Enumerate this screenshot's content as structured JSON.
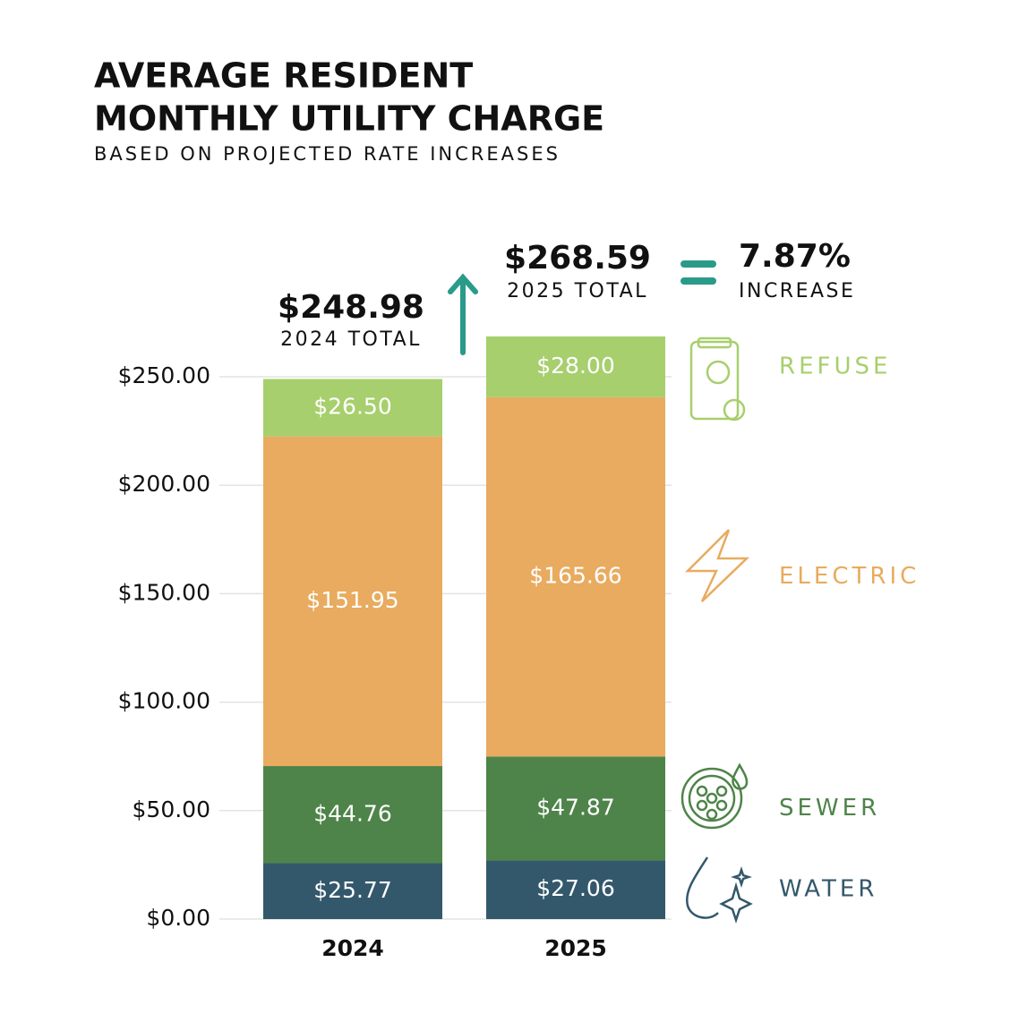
{
  "chart_data": {
    "type": "stacked-bar",
    "title": [
      "AVERAGE RESIDENT",
      "MONTHLY UTILITY CHARGE"
    ],
    "subtitle": "BASED ON PROJECTED RATE INCREASES",
    "categories": [
      "2024",
      "2025"
    ],
    "series": [
      {
        "name": "WATER",
        "color": "#33586b",
        "values": [
          25.77,
          27.06
        ],
        "value_labels": [
          "$25.77",
          "$27.06"
        ]
      },
      {
        "name": "SEWER",
        "color": "#4e8449",
        "values": [
          44.76,
          47.87
        ],
        "value_labels": [
          "$44.76",
          "$47.87"
        ]
      },
      {
        "name": "ELECTRIC",
        "color": "#e8ab5f",
        "values": [
          151.95,
          165.66
        ],
        "value_labels": [
          "$151.95",
          "$165.66"
        ]
      },
      {
        "name": "REFUSE",
        "color": "#a7cf6d",
        "values": [
          26.5,
          28.0
        ],
        "value_labels": [
          "$26.50",
          "$28.00"
        ]
      }
    ],
    "totals": [
      {
        "label": "$248.98",
        "caption": "2024 TOTAL"
      },
      {
        "label": "$268.59",
        "caption": "2025 TOTAL"
      }
    ],
    "increase": {
      "label": "7.87%",
      "caption": "INCREASE"
    },
    "ylim": [
      0,
      250
    ],
    "yticks": [
      {
        "value": 0,
        "label": "$0.00"
      },
      {
        "value": 50,
        "label": "$50.00"
      },
      {
        "value": 100,
        "label": "$100.00"
      },
      {
        "value": 150,
        "label": "$150.00"
      },
      {
        "value": 200,
        "label": "$200.00"
      },
      {
        "value": 250,
        "label": "$250.00"
      }
    ],
    "grid": true
  }
}
